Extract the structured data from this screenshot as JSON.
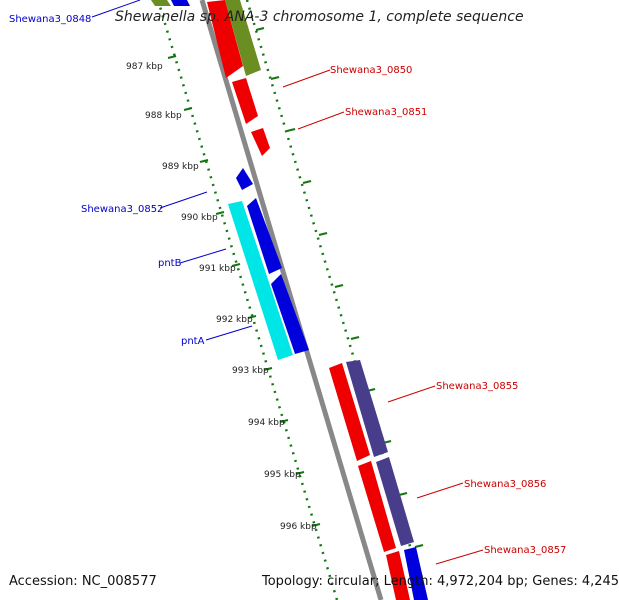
{
  "header": {
    "title": "Shewanella sp. ANA-3 chromosome 1, complete sequence"
  },
  "footer": {
    "accession": "Accession: NC_008577",
    "summary": "Topology: circular; Length: 4,972,204 bp; Genes: 4,245"
  },
  "map": {
    "kbp_ticks": [
      "987 kbp",
      "988 kbp",
      "989 kbp",
      "990 kbp",
      "991 kbp",
      "992 kbp",
      "993 kbp",
      "994 kbp",
      "995 kbp",
      "996 kbp"
    ],
    "gene_labels": [
      {
        "text": "Shewana3_0848",
        "color": "#0000cc"
      },
      {
        "text": "Shewana3_0850",
        "color": "#cc0000"
      },
      {
        "text": "Shewana3_0851",
        "color": "#cc0000"
      },
      {
        "text": "Shewana3_0852",
        "color": "#0000cc"
      },
      {
        "text": "pntB",
        "color": "#0000cc"
      },
      {
        "text": "pntA",
        "color": "#0000cc"
      },
      {
        "text": "Shewana3_0855",
        "color": "#cc0000"
      },
      {
        "text": "Shewana3_0856",
        "color": "#cc0000"
      },
      {
        "text": "Shewana3_0857",
        "color": "#cc0000"
      }
    ],
    "colors": {
      "backbone": "#888888",
      "forward_gene": "#ee0000",
      "reverse_gene": "#0000dd",
      "cyan_gene": "#00e5e5",
      "olive_gene": "#6b8e23",
      "slate_gene": "#483d8b",
      "tick_green": "#117711"
    }
  }
}
